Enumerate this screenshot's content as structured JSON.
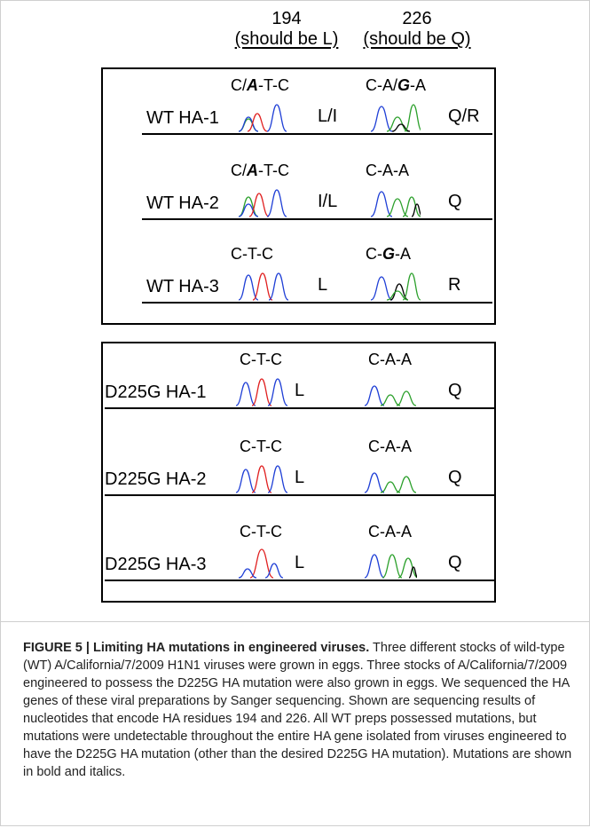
{
  "header": {
    "col1_number": "194",
    "col1_note": "(should be L)",
    "col2_number": "226",
    "col2_note": "(should be Q)"
  },
  "panels": [
    {
      "rows": [
        {
          "name": "WT HA-1",
          "seq1": [
            "C/",
            "A",
            "-T-C"
          ],
          "aa1": "L/I",
          "seq2": [
            "C-A/",
            "G",
            "-A"
          ],
          "aa2": "Q/R"
        },
        {
          "name": "WT HA-2",
          "seq1": [
            "C/",
            "A",
            "-T-C"
          ],
          "aa1": "I/L",
          "seq2": [
            "C-A-A",
            "",
            ""
          ],
          "aa2": "Q"
        },
        {
          "name": "WT HA-3",
          "seq1": [
            "C-T-C",
            "",
            ""
          ],
          "aa1": "L",
          "seq2": [
            "C-",
            "G",
            "-A"
          ],
          "aa2": "R"
        }
      ]
    },
    {
      "rows": [
        {
          "name": "D225G HA-1",
          "seq1": [
            "C-T-C",
            "",
            ""
          ],
          "aa1": "L",
          "seq2": [
            "C-A-A",
            "",
            ""
          ],
          "aa2": "Q"
        },
        {
          "name": "D225G HA-2",
          "seq1": [
            "C-T-C",
            "",
            ""
          ],
          "aa1": "L",
          "seq2": [
            "C-A-A",
            "",
            ""
          ],
          "aa2": "Q"
        },
        {
          "name": "D225G HA-3",
          "seq1": [
            "C-T-C",
            "",
            ""
          ],
          "aa1": "L",
          "seq2": [
            "C-A-A",
            "",
            ""
          ],
          "aa2": "Q"
        }
      ]
    }
  ],
  "trace_colors": {
    "A": "#2ca02c",
    "C": "#1f3fd6",
    "G": "#000000",
    "T": "#e02020"
  },
  "caption": {
    "title": "FIGURE 5 | Limiting HA mutations in engineered viruses.",
    "body": " Three different stocks of wild-type (WT) A/California/7/2009 H1N1 viruses were grown in eggs. Three stocks of A/California/7/2009 engineered to possess the D225G HA mutation were also grown in eggs. We sequenced the HA genes of these viral preparations by Sanger sequencing. Shown are sequencing results of nucleotides that encode HA residues 194 and 226. All WT preps possessed mutations, but mutations were undetectable throughout the entire HA gene isolated from viruses engineered to have the D225G HA mutation (other than the desired D225G HA mutation). Mutations are shown in bold and italics."
  }
}
